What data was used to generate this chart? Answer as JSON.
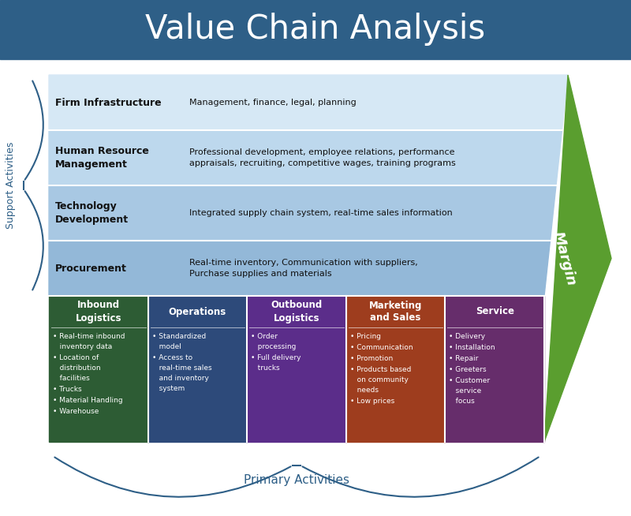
{
  "title": "Value Chain Analysis",
  "title_bg_color": "#2e5f87",
  "title_text_color": "#ffffff",
  "title_fontsize": 30,
  "support_label": "Support Activities",
  "primary_label": "Primary Activities",
  "label_color": "#2e5f87",
  "support_rows": [
    {
      "title": "Firm Infrastructure",
      "title_lines": 1,
      "desc": "Management, finance, legal, planning",
      "bg_color": "#d6e8f5"
    },
    {
      "title": "Human Resource\nManagement",
      "title_lines": 2,
      "desc": "Professional development, employee relations, performance\nappraisals, recruiting, competitive wages, training programs",
      "bg_color": "#bdd8ed"
    },
    {
      "title": "Technology\nDevelopment",
      "title_lines": 2,
      "desc": "Integrated supply chain system, real-time sales information",
      "bg_color": "#a8c8e3"
    },
    {
      "title": "Procurement",
      "title_lines": 1,
      "desc": "Real-time inventory, Communication with suppliers,\nPurchase supplies and materials",
      "bg_color": "#93b8d8"
    }
  ],
  "primary_cols": [
    {
      "title": "Inbound\nLogistics",
      "bg_color": "#2d5c34",
      "items": [
        "Real-time inbound\ninventory data",
        "Location of\ndistribution\nfacilities",
        "Trucks",
        "Material Handling",
        "Warehouse"
      ]
    },
    {
      "title": "Operations",
      "bg_color": "#2d4a7a",
      "items": [
        "Standardized\nmodel",
        "Access to\nreal-time sales\nand inventory\nsystem"
      ]
    },
    {
      "title": "Outbound\nLogistics",
      "bg_color": "#5b2d8a",
      "items": [
        "Order\nprocessing",
        "Full delivery\ntrucks"
      ]
    },
    {
      "title": "Marketing\nand Sales",
      "bg_color": "#9e3d1e",
      "items": [
        "Pricing",
        "Communication",
        "Promotion",
        "Products based\non community\nneeds",
        "Low prices"
      ]
    },
    {
      "title": "Service",
      "bg_color": "#662d6b",
      "items": [
        "Delivery",
        "Installation",
        "Repair",
        "Greeters",
        "Customer\nservice\nfocus"
      ]
    }
  ],
  "margin_color": "#5a9e2f",
  "margin_text": "Margin",
  "bg_color": "#ffffff"
}
